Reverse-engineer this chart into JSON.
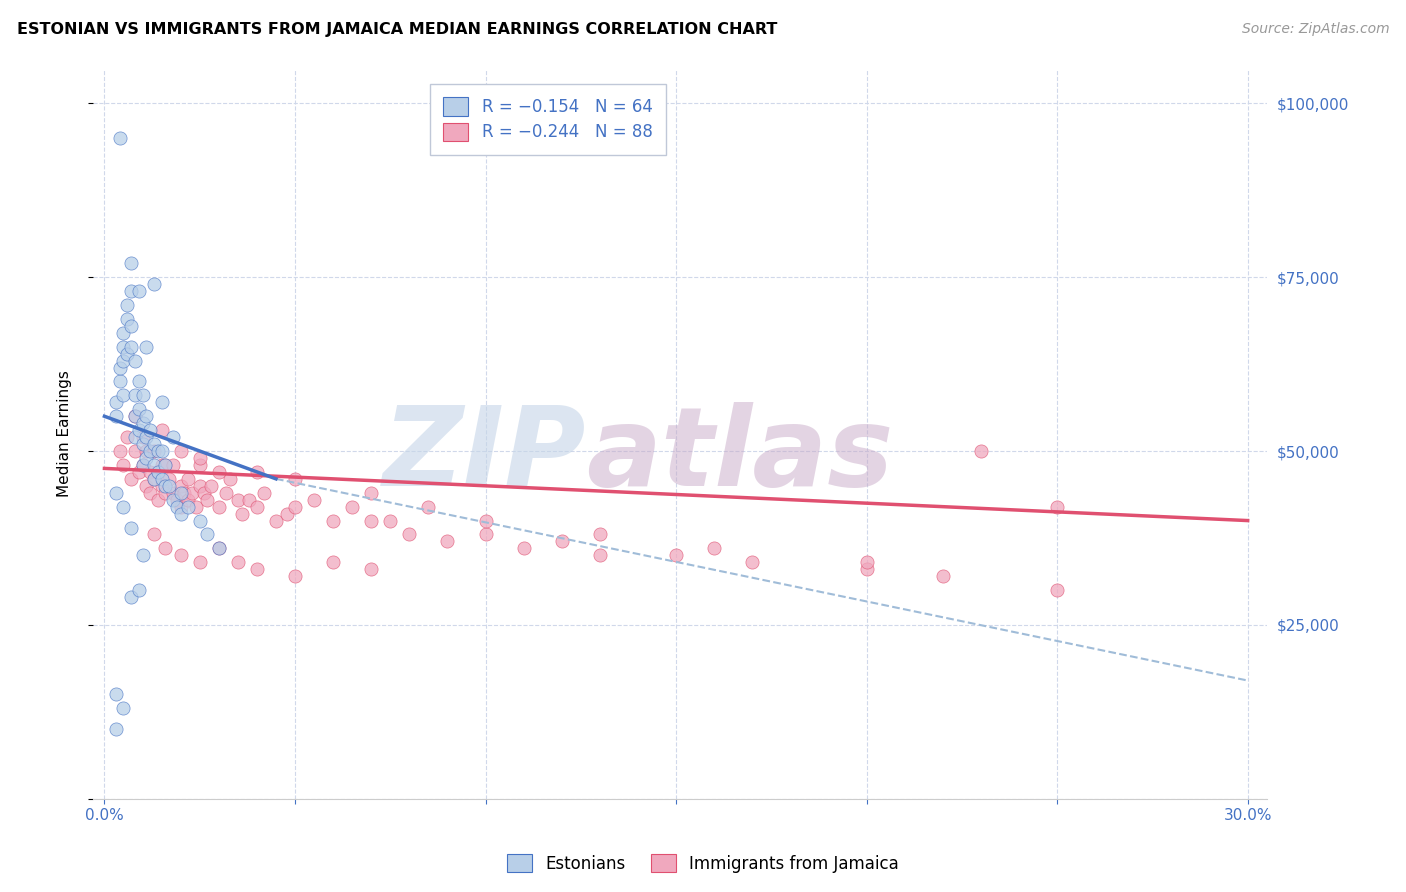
{
  "title": "ESTONIAN VS IMMIGRANTS FROM JAMAICA MEDIAN EARNINGS CORRELATION CHART",
  "source": "Source: ZipAtlas.com",
  "ylabel": "Median Earnings",
  "yticks": [
    0,
    25000,
    50000,
    75000,
    100000
  ],
  "ytick_labels": [
    "",
    "$25,000",
    "$50,000",
    "$75,000",
    "$100,000"
  ],
  "legend1_label": "R = −0.154   N = 64",
  "legend2_label": "R = −0.244   N = 88",
  "scatter_color_blue": "#b8cfe8",
  "scatter_color_pink": "#f0a8be",
  "trend_color_blue": "#4472c4",
  "trend_color_pink": "#e05070",
  "trend_color_dashed": "#a0bcd8",
  "watermark_part1": "ZIP",
  "watermark_part2": "atlas",
  "watermark_color1": "#c5d5e8",
  "watermark_color2": "#c8aac8",
  "footer_blue": "Estonians",
  "footer_pink": "Immigrants from Jamaica",
  "axis_color": "#4472c4",
  "grid_color": "#d0d8ea",
  "blue_scatter_x": [
    0.003,
    0.003,
    0.004,
    0.004,
    0.005,
    0.005,
    0.005,
    0.005,
    0.006,
    0.006,
    0.006,
    0.007,
    0.007,
    0.007,
    0.008,
    0.008,
    0.008,
    0.008,
    0.009,
    0.009,
    0.009,
    0.01,
    0.01,
    0.01,
    0.01,
    0.011,
    0.011,
    0.011,
    0.012,
    0.012,
    0.013,
    0.013,
    0.013,
    0.014,
    0.014,
    0.015,
    0.015,
    0.016,
    0.016,
    0.017,
    0.018,
    0.019,
    0.02,
    0.02,
    0.022,
    0.025,
    0.027,
    0.03,
    0.004,
    0.007,
    0.009,
    0.011,
    0.013,
    0.015,
    0.018,
    0.003,
    0.005,
    0.007,
    0.01,
    0.003,
    0.005,
    0.007,
    0.009,
    0.003
  ],
  "blue_scatter_y": [
    55000,
    57000,
    60000,
    62000,
    58000,
    63000,
    65000,
    67000,
    64000,
    69000,
    71000,
    73000,
    68000,
    65000,
    63000,
    58000,
    55000,
    52000,
    60000,
    56000,
    53000,
    58000,
    54000,
    51000,
    48000,
    55000,
    52000,
    49000,
    53000,
    50000,
    51000,
    48000,
    46000,
    50000,
    47000,
    50000,
    46000,
    48000,
    45000,
    45000,
    43000,
    42000,
    44000,
    41000,
    42000,
    40000,
    38000,
    36000,
    95000,
    77000,
    73000,
    65000,
    74000,
    57000,
    52000,
    44000,
    42000,
    39000,
    35000,
    15000,
    13000,
    29000,
    30000,
    10000
  ],
  "pink_scatter_x": [
    0.004,
    0.005,
    0.006,
    0.007,
    0.008,
    0.008,
    0.009,
    0.01,
    0.01,
    0.011,
    0.011,
    0.012,
    0.012,
    0.013,
    0.013,
    0.014,
    0.014,
    0.015,
    0.015,
    0.016,
    0.016,
    0.017,
    0.018,
    0.018,
    0.019,
    0.02,
    0.02,
    0.021,
    0.022,
    0.022,
    0.023,
    0.024,
    0.025,
    0.025,
    0.026,
    0.027,
    0.028,
    0.03,
    0.032,
    0.033,
    0.035,
    0.036,
    0.038,
    0.04,
    0.042,
    0.045,
    0.048,
    0.05,
    0.055,
    0.06,
    0.065,
    0.07,
    0.075,
    0.08,
    0.09,
    0.1,
    0.11,
    0.12,
    0.13,
    0.15,
    0.17,
    0.2,
    0.22,
    0.25,
    0.013,
    0.016,
    0.02,
    0.025,
    0.03,
    0.035,
    0.04,
    0.05,
    0.06,
    0.07,
    0.015,
    0.02,
    0.025,
    0.03,
    0.04,
    0.05,
    0.07,
    0.085,
    0.1,
    0.13,
    0.16,
    0.2,
    0.23,
    0.25
  ],
  "pink_scatter_y": [
    50000,
    48000,
    52000,
    46000,
    50000,
    55000,
    47000,
    48000,
    52000,
    45000,
    50000,
    47000,
    44000,
    46000,
    50000,
    43000,
    47000,
    45000,
    48000,
    44000,
    48000,
    46000,
    44000,
    48000,
    43000,
    45000,
    42000,
    44000,
    43000,
    46000,
    44000,
    42000,
    45000,
    48000,
    44000,
    43000,
    45000,
    42000,
    44000,
    46000,
    43000,
    41000,
    43000,
    42000,
    44000,
    40000,
    41000,
    42000,
    43000,
    40000,
    42000,
    40000,
    40000,
    38000,
    37000,
    38000,
    36000,
    37000,
    35000,
    35000,
    34000,
    33000,
    32000,
    30000,
    38000,
    36000,
    35000,
    34000,
    36000,
    34000,
    33000,
    32000,
    34000,
    33000,
    53000,
    50000,
    49000,
    47000,
    47000,
    46000,
    44000,
    42000,
    40000,
    38000,
    36000,
    34000,
    50000,
    42000
  ],
  "blue_trend_x": [
    0.0,
    0.045
  ],
  "blue_trend_y": [
    55000,
    46000
  ],
  "pink_trend_x": [
    0.0,
    0.3
  ],
  "pink_trend_y": [
    47500,
    40000
  ],
  "dashed_trend_x": [
    0.045,
    0.3
  ],
  "dashed_trend_y": [
    46000,
    17000
  ],
  "xmin": -0.003,
  "xmax": 0.305,
  "ymin": 0,
  "ymax": 105000,
  "x_grid_lines": [
    0.0,
    0.05,
    0.1,
    0.15,
    0.2,
    0.25,
    0.3
  ],
  "x_tick_positions": [
    0.0,
    0.05,
    0.1,
    0.15,
    0.2,
    0.25,
    0.3
  ],
  "x_tick_labels": [
    "0.0%",
    "",
    "",
    "",
    "",
    "",
    "30.0%"
  ]
}
